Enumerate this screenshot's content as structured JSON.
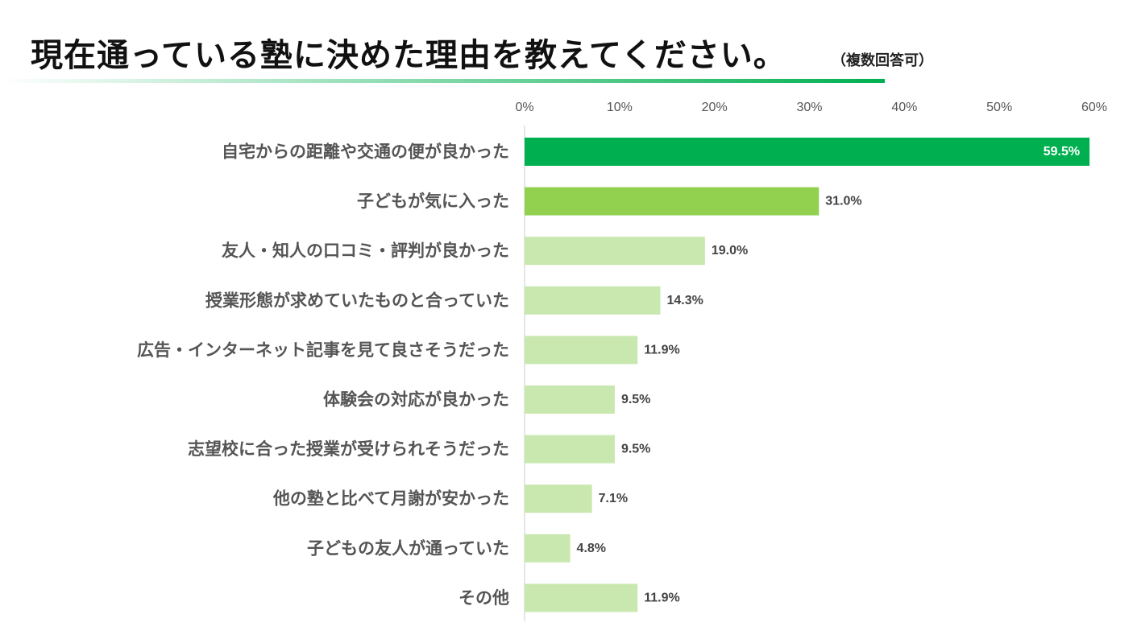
{
  "header": {
    "title": "現在通っている塾に決めた理由を教えてください。",
    "note": "（複数回答可）"
  },
  "colors": {
    "top": "#00b050",
    "second": "#92d050",
    "rest": "#c8e8b0",
    "axis": "#cccccc"
  },
  "chart_data": {
    "type": "bar",
    "orientation": "horizontal",
    "title": "現在通っている塾に決めた理由を教えてください。",
    "categories": [
      "自宅からの距離や交通の便が良かった",
      "子どもが気に入った",
      "友人・知人の口コミ・評判が良かった",
      "授業形態が求めていたものと合っていた",
      "広告・インターネット記事を見て良さそうだった",
      "体験会の対応が良かった",
      "志望校に合った授業が受けられそうだった",
      "他の塾と比べて月謝が安かった",
      "子どもの友人が通っていた",
      "その他"
    ],
    "values": [
      59.5,
      31.0,
      19.0,
      14.3,
      11.9,
      9.5,
      9.5,
      7.1,
      4.8,
      11.9
    ],
    "value_labels": [
      "59.5%",
      "31.0%",
      "19.0%",
      "14.3%",
      "11.9%",
      "9.5%",
      "9.5%",
      "7.1%",
      "4.8%",
      "11.9%"
    ],
    "xlim": [
      0,
      60
    ],
    "ticks": [
      "0%",
      "10%",
      "20%",
      "30%",
      "40%",
      "50%",
      "60%"
    ],
    "tick_values": [
      0,
      10,
      20,
      30,
      40,
      50,
      60
    ],
    "xlabel": "",
    "ylabel": "",
    "axis_position": "top",
    "grid": false,
    "legend": "none"
  }
}
